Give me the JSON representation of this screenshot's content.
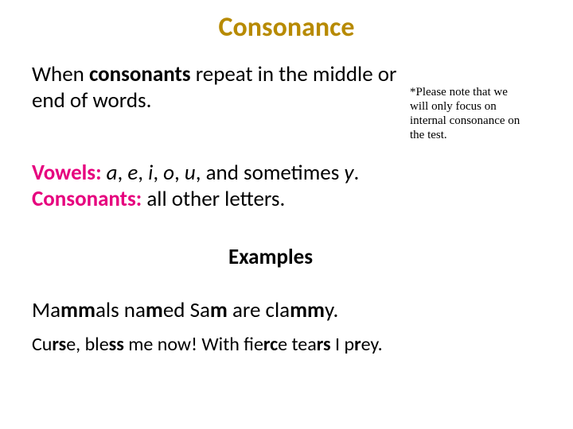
{
  "colors": {
    "title": "#b78a00",
    "body": "#000000",
    "pink": "#e6007e",
    "background": "#ffffff"
  },
  "fonts": {
    "title_size": 34,
    "body_size": 27,
    "note_size": 15,
    "ex2_size": 24
  },
  "title": "Consonance",
  "definition": {
    "pre": "When ",
    "bold": "consonants",
    "post": " repeat in the middle or end of words."
  },
  "note": {
    "l1": "*Please note that we",
    "l2": "will only focus on",
    "l3": "internal consonance on",
    "l4": "the test."
  },
  "vowels": {
    "label": "Vowels:",
    "list_pre": " ",
    "a": "a",
    "sep1": ", ",
    "e": "e",
    "sep2": ", ",
    "i": "i",
    "sep3": ", ",
    "o": "o",
    "sep4": ", ",
    "u": "u",
    "mid": ", and sometimes ",
    "y": "y",
    "end": "."
  },
  "consonants": {
    "label": "Consonants:",
    "rest": " all other letters."
  },
  "examples_heading": "Examples",
  "ex1": {
    "p1": "Ma",
    "b1": "mm",
    "p2": "als na",
    "b2": "m",
    "p3": "ed Sa",
    "b3": "m",
    "p4": " are cla",
    "b4": "mm",
    "p5": "y."
  },
  "ex2": {
    "p1": "Cu",
    "b1": "rs",
    "p2": "e, ble",
    "b2": "ss",
    "p3": " me now!  With fie",
    "b3": "rc",
    "p4": "e tea",
    "b4": "rs",
    "p5": " I p",
    "b5": "r",
    "p6": "ey."
  }
}
